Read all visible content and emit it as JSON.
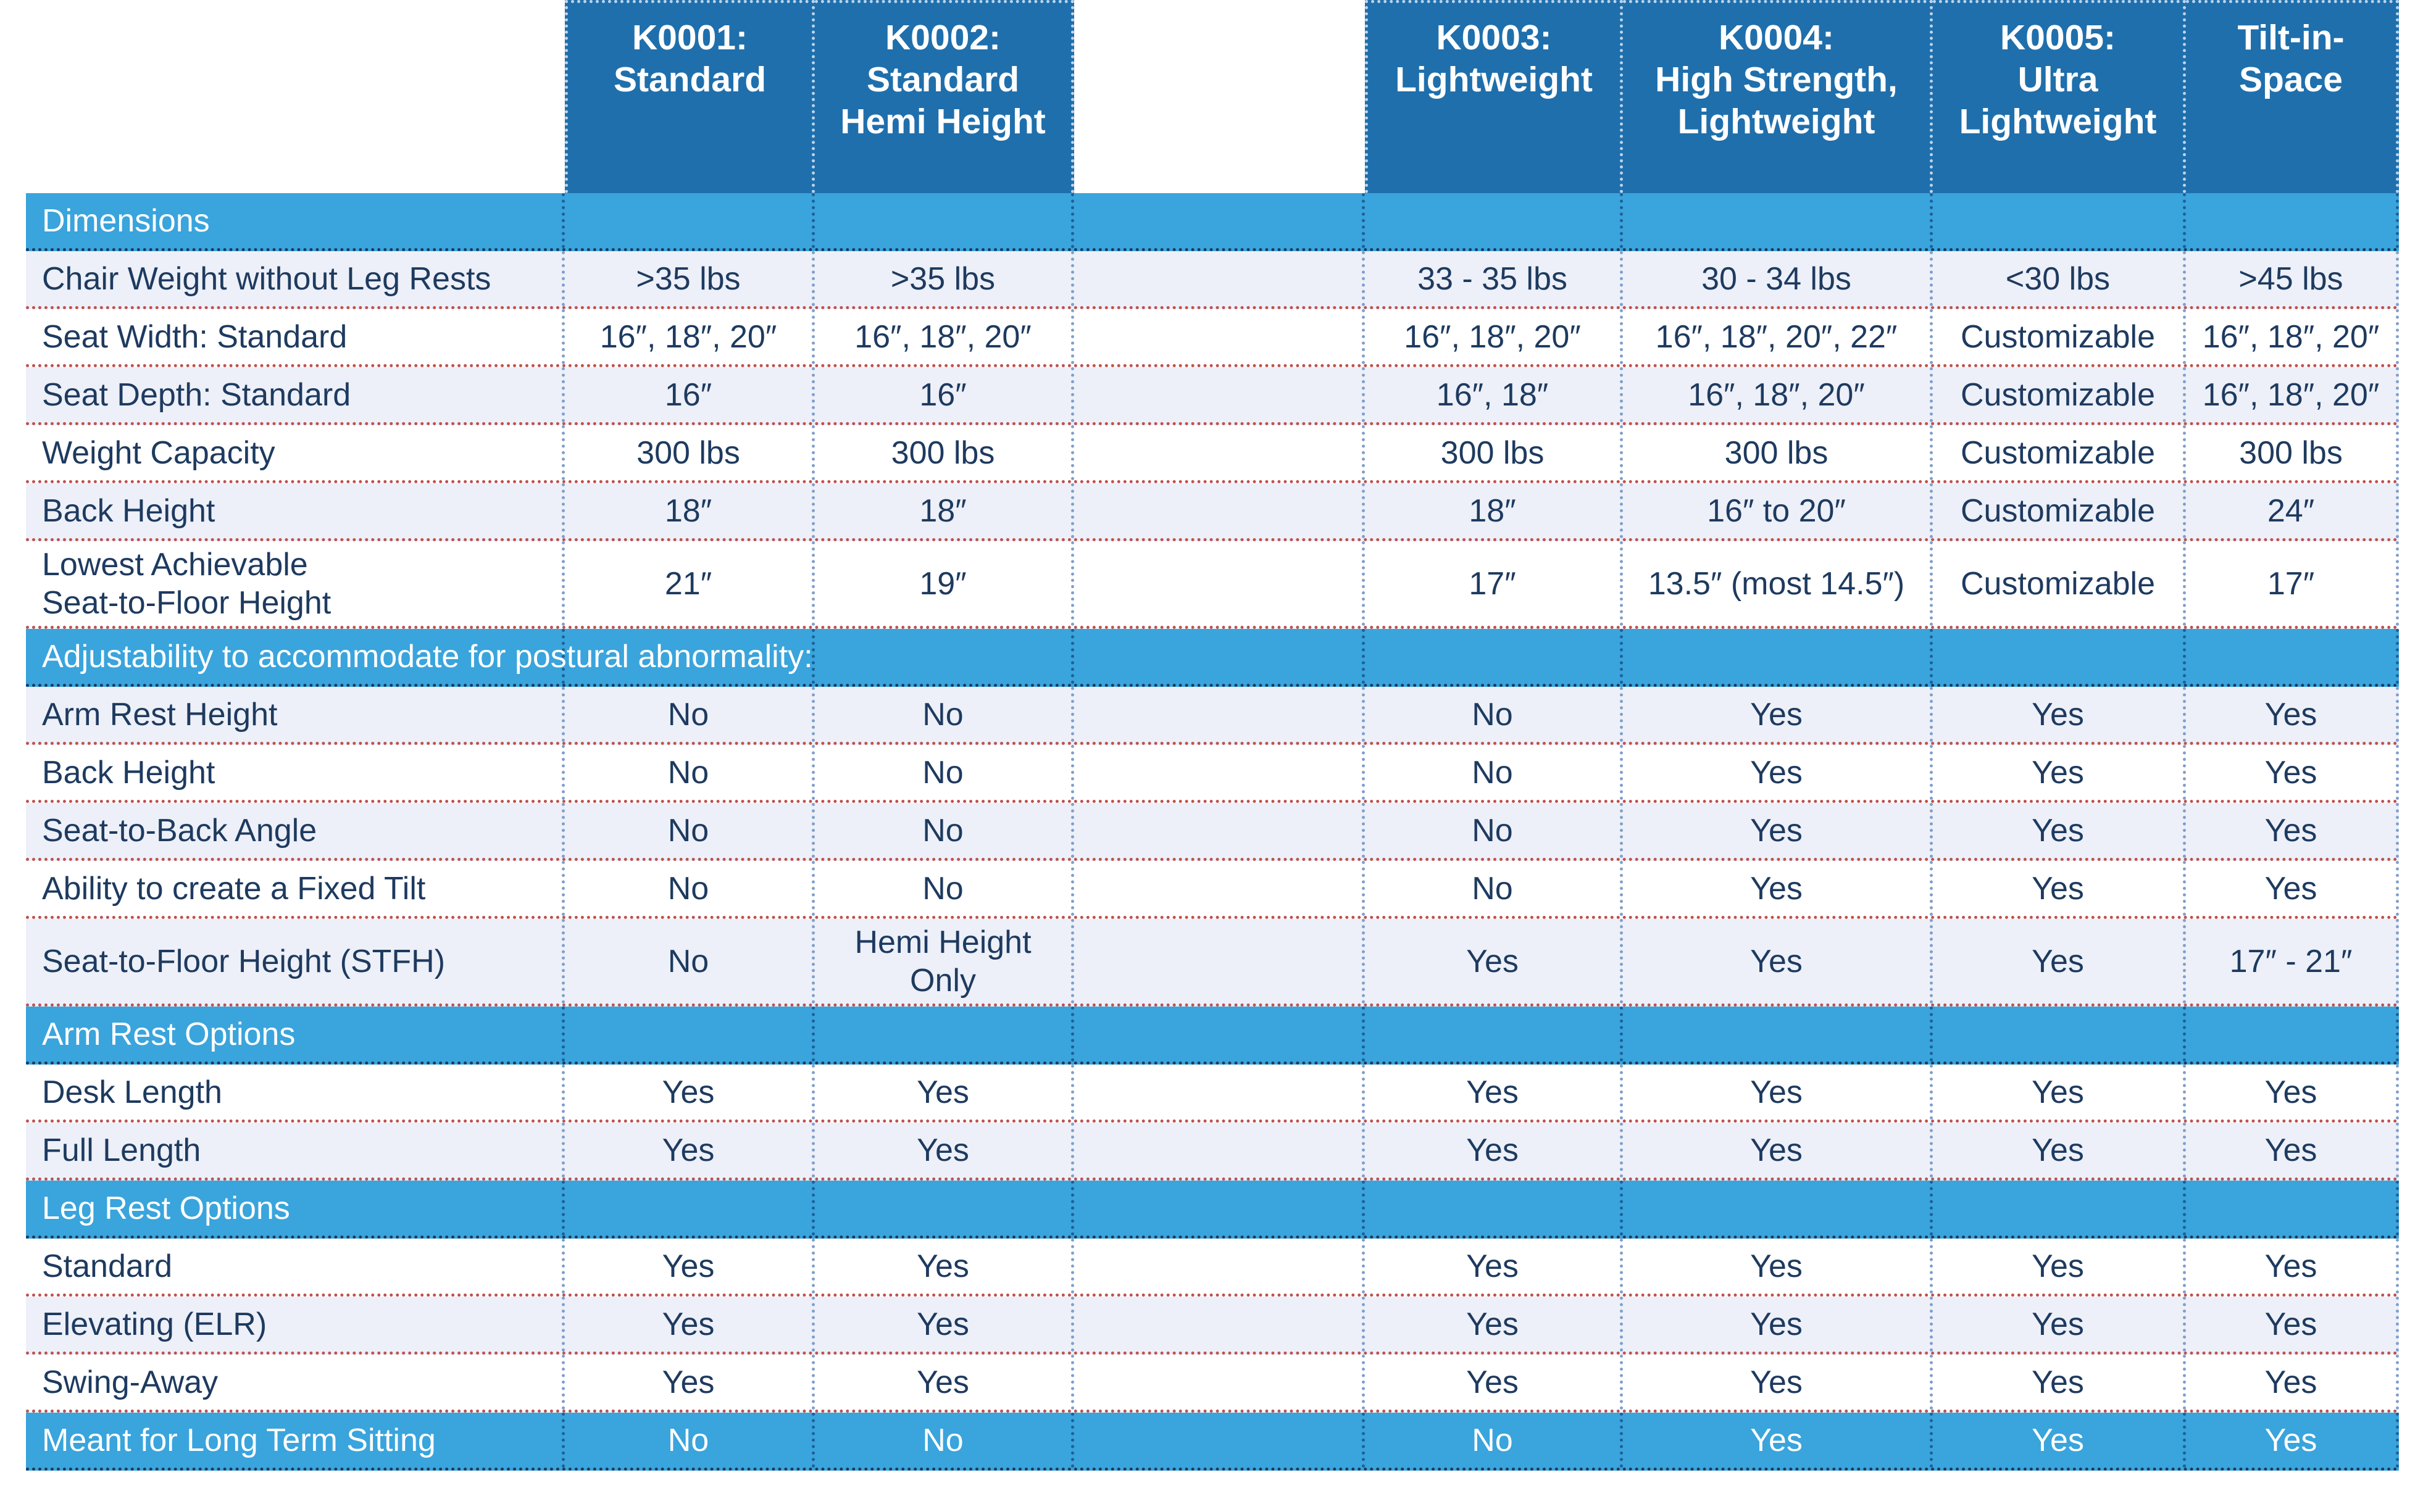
{
  "colors": {
    "header_bg": "#1f6fac",
    "section_bg": "#3aa4dc",
    "alt_row_bg": "#edf0f8",
    "text": "#1e3a5f"
  },
  "headers": [
    "K0001:\nStandard",
    "K0002:\nStandard\nHemi Height",
    "",
    "K0003:\nLightweight",
    "K0004:\nHigh Strength,\nLightweight",
    "K0005:\nUltra\nLightweight",
    "Tilt-in-\nSpace"
  ],
  "rows": [
    {
      "type": "section",
      "label": "Dimensions"
    },
    {
      "type": "data",
      "label": "Chair Weight without Leg Rests",
      "values": [
        ">35 lbs",
        ">35 lbs",
        "",
        "33 - 35 lbs",
        "30 - 34 lbs",
        "<30 lbs",
        ">45 lbs"
      ]
    },
    {
      "type": "data",
      "label": "Seat Width: Standard",
      "values": [
        "16″, 18″, 20″",
        "16″, 18″, 20″",
        "",
        "16″, 18″, 20″",
        "16″, 18″, 20″, 22″",
        "Customizable",
        "16″, 18″, 20″"
      ]
    },
    {
      "type": "data",
      "label": "Seat Depth: Standard",
      "values": [
        "16″",
        "16″",
        "",
        "16″, 18″",
        "16″, 18″, 20″",
        "Customizable",
        "16″, 18″, 20″"
      ]
    },
    {
      "type": "data",
      "label": "Weight Capacity",
      "values": [
        "300 lbs",
        "300 lbs",
        "",
        "300 lbs",
        "300 lbs",
        "Customizable",
        "300 lbs"
      ]
    },
    {
      "type": "data",
      "label": "Back Height",
      "values": [
        "18″",
        "18″",
        "",
        "18″",
        "16″ to 20″",
        "Customizable",
        "24″"
      ]
    },
    {
      "type": "data",
      "tall": true,
      "label": "Lowest Achievable\nSeat-to-Floor Height",
      "values": [
        "21″",
        "19″",
        "",
        "17″",
        "13.5″ (most 14.5″)",
        "Customizable",
        "17″"
      ]
    },
    {
      "type": "section",
      "label": "Adjustability to accommodate for postural abnormality:"
    },
    {
      "type": "data",
      "label": "Arm Rest Height",
      "values": [
        "No",
        "No",
        "",
        "No",
        "Yes",
        "Yes",
        "Yes"
      ]
    },
    {
      "type": "data",
      "label": "Back Height",
      "values": [
        "No",
        "No",
        "",
        "No",
        "Yes",
        "Yes",
        "Yes"
      ]
    },
    {
      "type": "data",
      "label": "Seat-to-Back Angle",
      "values": [
        "No",
        "No",
        "",
        "No",
        "Yes",
        "Yes",
        "Yes"
      ]
    },
    {
      "type": "data",
      "label": "Ability to create a Fixed Tilt",
      "values": [
        "No",
        "No",
        "",
        "No",
        "Yes",
        "Yes",
        "Yes"
      ]
    },
    {
      "type": "data",
      "tall": true,
      "label": "Seat-to-Floor Height (STFH)",
      "values": [
        "No",
        "Hemi Height\nOnly",
        "",
        "Yes",
        "Yes",
        "Yes",
        "17″ - 21″"
      ]
    },
    {
      "type": "section",
      "label": "Arm Rest Options"
    },
    {
      "type": "data",
      "label": "Desk Length",
      "values": [
        "Yes",
        "Yes",
        "",
        "Yes",
        "Yes",
        "Yes",
        "Yes"
      ]
    },
    {
      "type": "data",
      "label": "Full Length",
      "values": [
        "Yes",
        "Yes",
        "",
        "Yes",
        "Yes",
        "Yes",
        "Yes"
      ]
    },
    {
      "type": "section",
      "label": "Leg Rest Options"
    },
    {
      "type": "data",
      "label": "Standard",
      "values": [
        "Yes",
        "Yes",
        "",
        "Yes",
        "Yes",
        "Yes",
        "Yes"
      ]
    },
    {
      "type": "data",
      "label": "Elevating (ELR)",
      "values": [
        "Yes",
        "Yes",
        "",
        "Yes",
        "Yes",
        "Yes",
        "Yes"
      ]
    },
    {
      "type": "data",
      "label": "Swing-Away",
      "values": [
        "Yes",
        "Yes",
        "",
        "Yes",
        "Yes",
        "Yes",
        "Yes"
      ]
    },
    {
      "type": "sectiondata",
      "label": "Meant for Long Term Sitting",
      "values": [
        "No",
        "No",
        "",
        "No",
        "Yes",
        "Yes",
        "Yes"
      ]
    }
  ]
}
